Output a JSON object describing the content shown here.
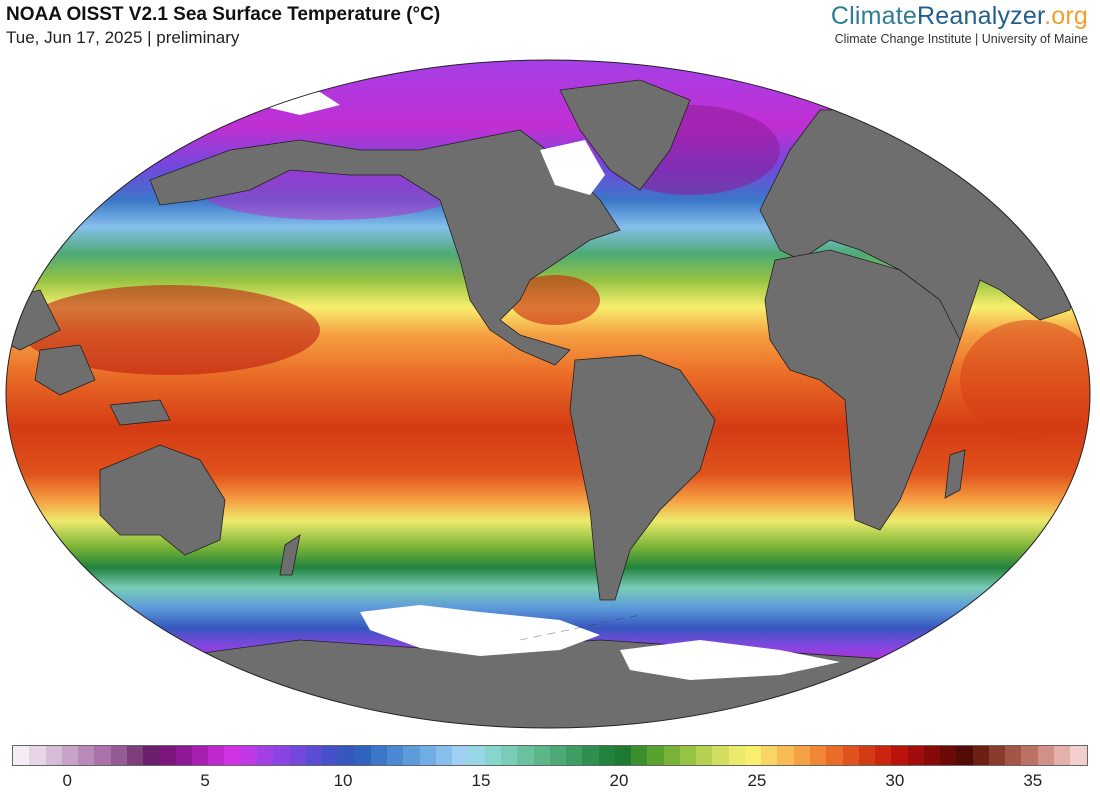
{
  "header": {
    "title": "NOAA OISST V2.1 Sea Surface Temperature (°C)",
    "subtitle": "Tue, Jun 17, 2025 | preliminary"
  },
  "brand": {
    "name_part1": "Climate",
    "name_part2": "Reanalyzer",
    "name_part3": ".org",
    "tagline": "Climate Change Institute | University of Maine"
  },
  "map": {
    "projection": "Robinson-style world ellipse",
    "variable": "sea surface temperature",
    "land_color": "#6e6e6e",
    "ice_color": "#ffffff"
  },
  "colorbar": {
    "min": -2,
    "max": 37,
    "tick_labels": [
      "0",
      "5",
      "10",
      "15",
      "20",
      "25",
      "30",
      "35"
    ],
    "tick_values": [
      0,
      5,
      10,
      15,
      20,
      25,
      30,
      35
    ],
    "colors": [
      "#f4eef4",
      "#e6d5e6",
      "#d6bcd6",
      "#c8a3c8",
      "#b98ab8",
      "#aa72a8",
      "#955b94",
      "#7d3f7c",
      "#6b1f6b",
      "#7a167c",
      "#8e1a95",
      "#a51fb0",
      "#be28cc",
      "#d233e2",
      "#bf3ae6",
      "#a43fe6",
      "#8b44e3",
      "#7248dd",
      "#5a4dd4",
      "#4650c9",
      "#3657be",
      "#2f64be",
      "#3a77c8",
      "#4c89d2",
      "#5d9bdb",
      "#70ade4",
      "#86bfec",
      "#9fd0f2",
      "#97d8e6",
      "#88d5cd",
      "#79ccb6",
      "#6ac19f",
      "#5cb68a",
      "#4daa76",
      "#3f9d63",
      "#2f8f50",
      "#21833e",
      "#1e7a30",
      "#3b8f2e",
      "#5aa22f",
      "#78b236",
      "#97c342",
      "#b5d14f",
      "#d2de60",
      "#ecea6c",
      "#f8ef6e",
      "#f9d565",
      "#f9bb55",
      "#f6a144",
      "#f18734",
      "#ea6d27",
      "#e0531c",
      "#d43b14",
      "#c9250f",
      "#b8140c",
      "#a00d0a",
      "#850a08",
      "#6c0a07",
      "#520b06",
      "#6e1f14",
      "#8a3b2c",
      "#a35647",
      "#bb7265",
      "#d19088",
      "#e4b0ab",
      "#f0cfcc"
    ]
  }
}
